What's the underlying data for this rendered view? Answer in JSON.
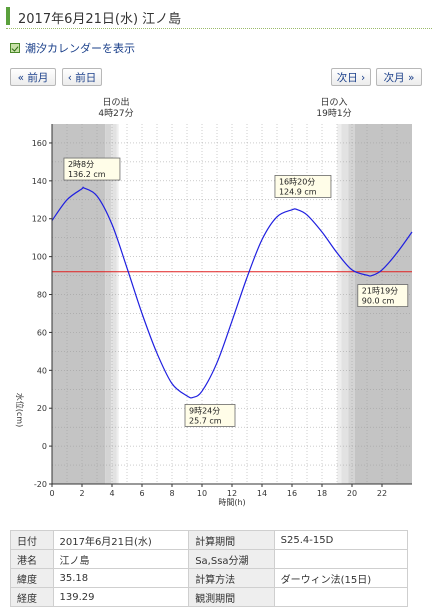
{
  "header": {
    "title": "2017年6月21日(水) 江ノ島"
  },
  "links": {
    "calendar": "潮汐カレンダーを表示"
  },
  "nav": {
    "prev_month": "« 前月",
    "prev_day": "‹ 前日",
    "next_day": "次日 ›",
    "next_month": "次月 »"
  },
  "sun": {
    "sunrise_label": "日の出",
    "sunrise_time": "4時27分",
    "sunset_label": "日の入",
    "sunset_time": "19時1分"
  },
  "chart_data": {
    "type": "line",
    "xlabel": "時間(h)",
    "ylabel": "水位(cm)",
    "xlim": [
      0,
      24
    ],
    "ylim": [
      -20,
      170
    ],
    "x_ticks": [
      0,
      2,
      4,
      6,
      8,
      10,
      12,
      14,
      16,
      18,
      20,
      22
    ],
    "y_ticks": [
      -20,
      0,
      20,
      40,
      60,
      80,
      100,
      120,
      140,
      160
    ],
    "grid": true,
    "reference_line": {
      "value": 92,
      "color": "#e02020"
    },
    "series": [
      {
        "color": "#2020e0",
        "x": [
          0,
          1,
          2,
          2.13,
          3,
          4,
          5,
          6,
          7,
          8,
          9,
          9.4,
          10,
          11,
          12,
          13,
          14,
          15,
          16,
          16.33,
          17,
          18,
          19,
          20,
          21,
          21.32,
          22,
          23,
          24
        ],
        "y": [
          119,
          130,
          135.8,
          136.2,
          132,
          117,
          94,
          70,
          49,
          33,
          26.5,
          25.7,
          29,
          44,
          66,
          89,
          109,
          121,
          124.7,
          124.9,
          122,
          113,
          102,
          93,
          90.2,
          90.0,
          93,
          102,
          113
        ]
      }
    ],
    "annotations": [
      {
        "time": "2時8分",
        "value": "136.2 cm",
        "x": 2.13,
        "y": 136.2
      },
      {
        "time": "9時24分",
        "value": "25.7 cm",
        "x": 9.4,
        "y": 25.7
      },
      {
        "time": "16時20分",
        "value": "124.9 cm",
        "x": 16.33,
        "y": 124.9
      },
      {
        "time": "21時19分",
        "value": "90.0 cm",
        "x": 21.32,
        "y": 90.0
      }
    ],
    "colors": {
      "night": "#c4c4c4",
      "day": "#ffffff",
      "twilight": [
        "#d4d4d4",
        "#e2e2e2",
        "#eeeeee"
      ]
    }
  },
  "info_table": {
    "rows": [
      {
        "k1": "日付",
        "v1": "2017年6月21日(水)",
        "k2": "計算期間",
        "v2": "S25.4-15D"
      },
      {
        "k1": "港名",
        "v1": "江ノ島",
        "k2": "Sa,Ssa分潮",
        "v2": ""
      },
      {
        "k1": "緯度",
        "v1": "35.18",
        "k2": "計算方法",
        "v2": "ダーウィン法(15日)"
      },
      {
        "k1": "経度",
        "v1": "139.29",
        "k2": "観測期間",
        "v2": ""
      }
    ]
  }
}
